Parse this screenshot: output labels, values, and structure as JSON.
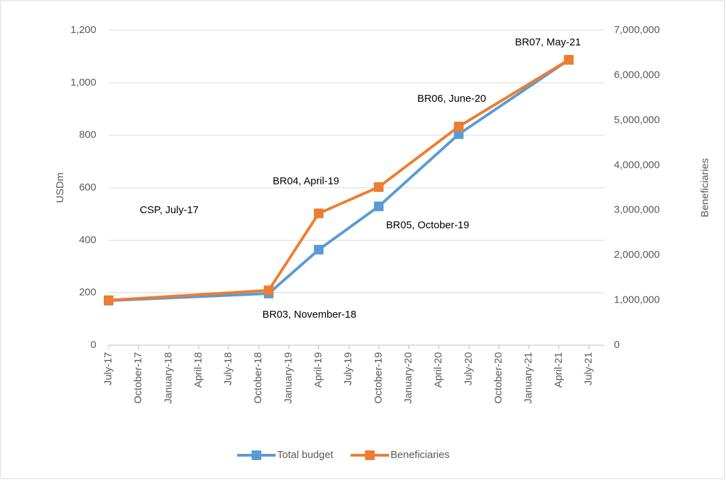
{
  "chart_data": {
    "type": "line",
    "y_label": "USDm",
    "y2_label": "Beneficiaries",
    "x": [
      "2017-07",
      "2018-11",
      "2019-04",
      "2019-10",
      "2020-06",
      "2021-05"
    ],
    "xlim": [
      "2017-07",
      "2021-08"
    ],
    "xticks": [
      {
        "value": "2017-07",
        "label": "July-17"
      },
      {
        "value": "2017-10",
        "label": "October-17"
      },
      {
        "value": "2018-01",
        "label": "January-18"
      },
      {
        "value": "2018-04",
        "label": "April-18"
      },
      {
        "value": "2018-07",
        "label": "July-18"
      },
      {
        "value": "2018-10",
        "label": "October-18"
      },
      {
        "value": "2019-01",
        "label": "January-19"
      },
      {
        "value": "2019-04",
        "label": "April-19"
      },
      {
        "value": "2019-07",
        "label": "July-19"
      },
      {
        "value": "2019-10",
        "label": "October-19"
      },
      {
        "value": "2020-01",
        "label": "January-20"
      },
      {
        "value": "2020-04",
        "label": "April-20"
      },
      {
        "value": "2020-07",
        "label": "July-20"
      },
      {
        "value": "2020-10",
        "label": "October-20"
      },
      {
        "value": "2021-01",
        "label": "January-21"
      },
      {
        "value": "2021-04",
        "label": "April-21"
      },
      {
        "value": "2021-07",
        "label": "July-21"
      }
    ],
    "ylim": [
      0,
      1200
    ],
    "yticks": [
      0,
      200,
      400,
      600,
      800,
      {
        "value": 1000,
        "label": "1,000"
      },
      {
        "value": 1200,
        "label": "1,200"
      }
    ],
    "y2lim": [
      0,
      7000000
    ],
    "y2ticks": [
      0,
      {
        "value": 1000000,
        "label": "1,000,000"
      },
      {
        "value": 2000000,
        "label": "2,000,000"
      },
      {
        "value": 3000000,
        "label": "3,000,000"
      },
      {
        "value": 4000000,
        "label": "4,000,000"
      },
      {
        "value": 5000000,
        "label": "5,000,000"
      },
      {
        "value": 6000000,
        "label": "6,000,000"
      },
      {
        "value": 7000000,
        "label": "7,000,000"
      }
    ],
    "grid": true,
    "legend": "bottom",
    "series": [
      {
        "name": "Total budget",
        "color": "#5b9bd5",
        "values": [
          170,
          197,
          364,
          529,
          804,
          1087
        ]
      },
      {
        "name": "Beneficiaries",
        "color": "#ed7d31",
        "axis": "y2",
        "values": [
          1000000,
          1220000,
          2930000,
          3515000,
          4860000,
          6343000
        ]
      }
    ],
    "annotations": [
      "CSP, July-17",
      "BR03, November-18",
      "BR04, April-19",
      "BR05, October-19",
      "BR06, June-20",
      "BR07, May-21"
    ]
  }
}
